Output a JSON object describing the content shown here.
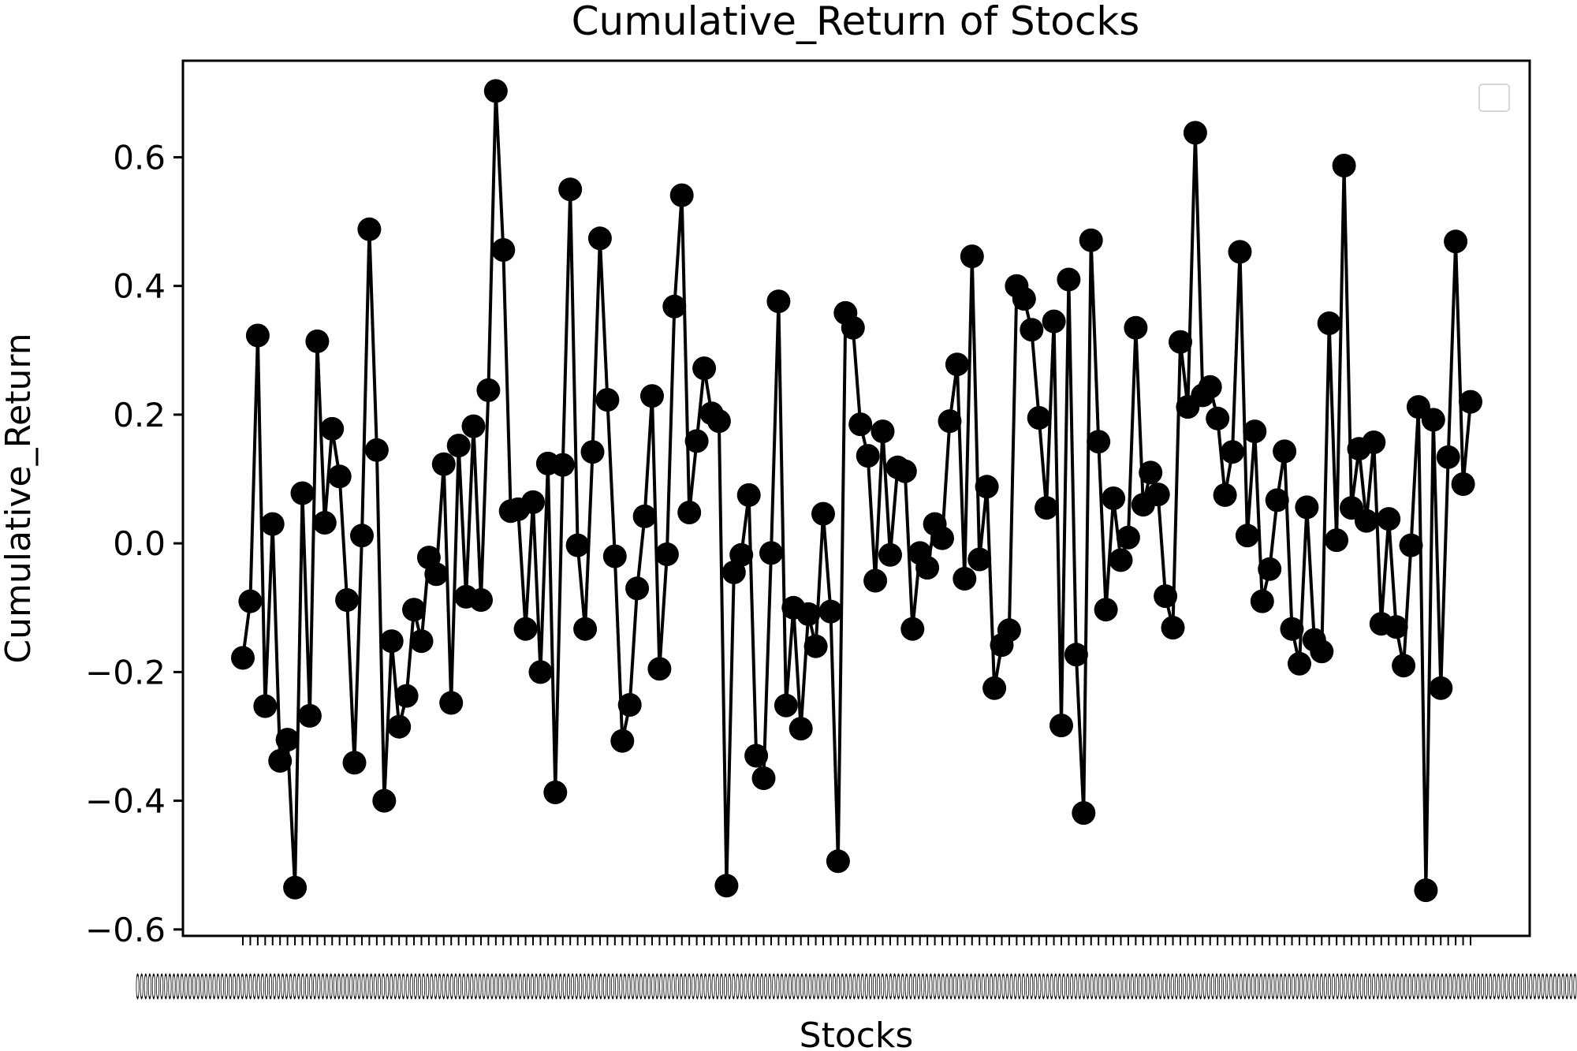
{
  "chart_data": {
    "type": "line",
    "title": "Cumulative_Return of Stocks",
    "xlabel": "Stocks",
    "ylabel": "Cumulative_Return",
    "ylim": [
      -0.61,
      0.75
    ],
    "yticks": [
      {
        "value": -0.6,
        "label": "−0.6"
      },
      {
        "value": -0.4,
        "label": "−0.4"
      },
      {
        "value": -0.2,
        "label": "−0.2"
      },
      {
        "value": 0.0,
        "label": "0.0"
      },
      {
        "value": 0.2,
        "label": "0.2"
      },
      {
        "value": 0.4,
        "label": "0.4"
      },
      {
        "value": 0.6,
        "label": "0.6"
      }
    ],
    "grid": false,
    "legend": "top-right",
    "legend_entries": [],
    "series_color": "#000000",
    "marker": "circle",
    "x_tick_labels_text": "0000000000000000000000000000000000000000000000000000000000000000000000000000000000000000000000000000000000000000000000000000000000000000000000000000000000000000000000000000000000000000000000000000000000000000000000000000000000000000000000000000000000000000000000000000000000000000000000000000000000000000000000000000000000000000000000000000000000000000000000",
    "values": [
      -0.178,
      -0.09,
      0.323,
      -0.253,
      0.03,
      -0.338,
      -0.305,
      -0.535,
      0.078,
      -0.268,
      0.314,
      0.032,
      0.178,
      0.104,
      -0.088,
      -0.341,
      0.012,
      0.488,
      0.145,
      -0.4,
      -0.152,
      -0.285,
      -0.237,
      -0.103,
      -0.152,
      -0.022,
      -0.048,
      0.123,
      -0.248,
      0.152,
      -0.083,
      0.182,
      -0.088,
      0.238,
      0.703,
      0.456,
      0.05,
      0.053,
      -0.133,
      0.064,
      -0.2,
      0.124,
      -0.387,
      0.122,
      0.55,
      -0.003,
      -0.133,
      0.142,
      0.474,
      0.223,
      -0.02,
      -0.307,
      -0.251,
      -0.07,
      0.042,
      0.229,
      -0.195,
      -0.017,
      0.368,
      0.541,
      0.048,
      0.159,
      0.272,
      0.202,
      0.19,
      -0.532,
      -0.045,
      -0.018,
      0.075,
      -0.33,
      -0.365,
      -0.015,
      0.376,
      -0.252,
      -0.1,
      -0.288,
      -0.11,
      -0.16,
      0.046,
      -0.106,
      -0.494,
      0.358,
      0.335,
      0.185,
      0.136,
      -0.058,
      0.174,
      -0.018,
      0.118,
      0.112,
      -0.133,
      -0.015,
      -0.038,
      0.03,
      0.008,
      0.19,
      0.278,
      -0.055,
      0.446,
      -0.025,
      0.088,
      -0.225,
      -0.158,
      -0.135,
      0.4,
      0.38,
      0.332,
      0.195,
      0.055,
      0.345,
      -0.283,
      0.41,
      -0.173,
      -0.419,
      0.471,
      0.158,
      -0.103,
      0.07,
      -0.026,
      0.009,
      0.335,
      0.06,
      0.11,
      0.076,
      -0.082,
      -0.131,
      0.313,
      0.212,
      0.638,
      0.23,
      0.243,
      0.194,
      0.075,
      0.142,
      0.453,
      0.012,
      0.174,
      -0.09,
      -0.04,
      0.067,
      0.143,
      -0.133,
      -0.187,
      0.056,
      -0.15,
      -0.168,
      0.342,
      0.005,
      0.587,
      0.055,
      0.147,
      0.035,
      0.157,
      -0.125,
      0.038,
      -0.13,
      -0.19,
      -0.003,
      0.212,
      -0.539,
      0.192,
      -0.225,
      0.134,
      0.469,
      0.092,
      0.22
    ]
  }
}
